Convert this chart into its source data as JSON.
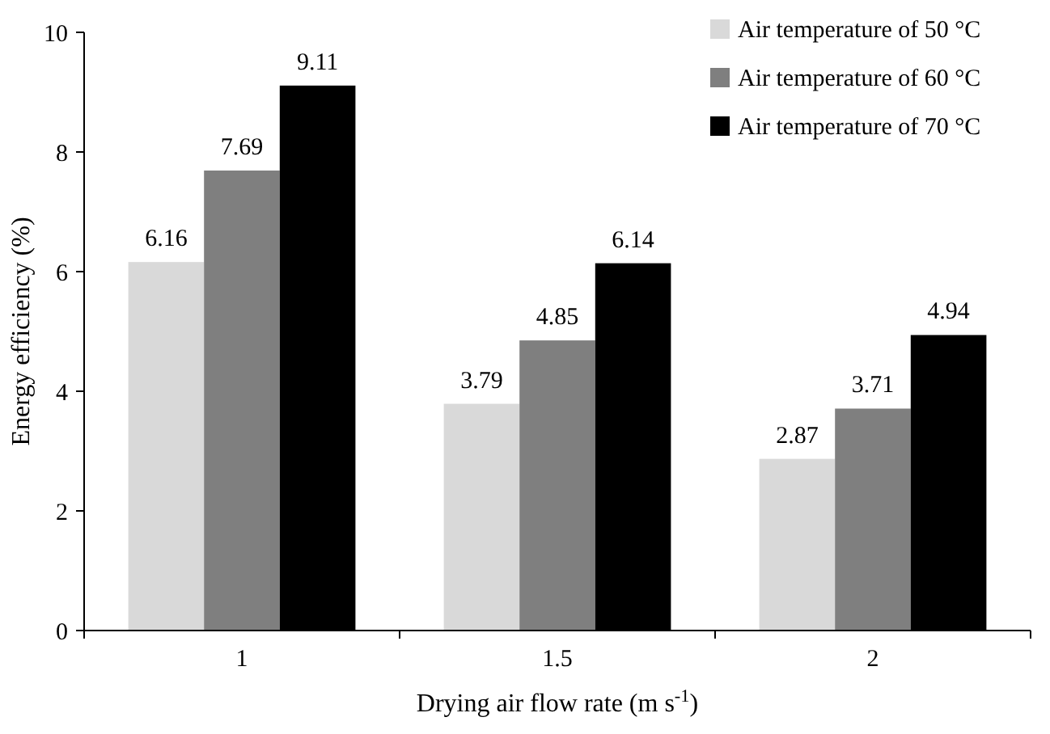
{
  "chart_data": {
    "type": "bar",
    "xlabel": "Drying air flow rate (m s$^{-1}$)",
    "ylabel": "Energy efficiency (%)",
    "categories": [
      "1",
      "1.5",
      "2"
    ],
    "series": [
      {
        "name": "Air temperature of 50 °C",
        "color": "#d9d9d9",
        "values": [
          6.16,
          3.79,
          2.87
        ]
      },
      {
        "name": "Air temperature of 60 °C",
        "color": "#7f7f7f",
        "values": [
          7.69,
          4.85,
          3.71
        ]
      },
      {
        "name": "Air temperature of 70 °C",
        "color": "#000000",
        "values": [
          9.11,
          6.14,
          4.94
        ]
      }
    ],
    "ylim": [
      0,
      10
    ],
    "yticks": [
      0,
      2,
      4,
      6,
      8,
      10
    ],
    "grid": false,
    "legend": "top right",
    "data_labels": true
  }
}
